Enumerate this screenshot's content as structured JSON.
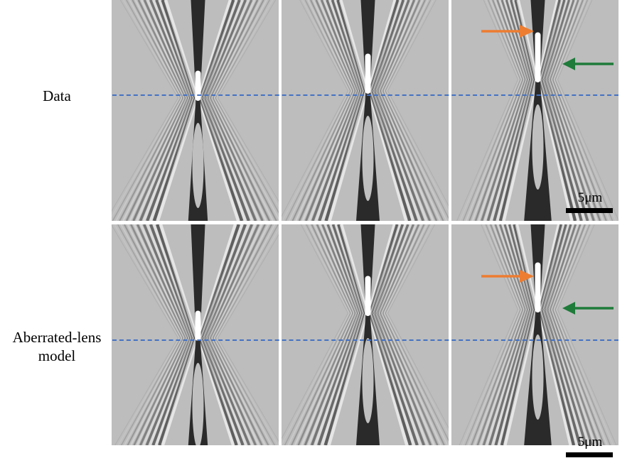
{
  "figure": {
    "rows": [
      {
        "label": "Data"
      },
      {
        "label": "Aberrated-lens model"
      }
    ],
    "columns": 3,
    "scale_bar": {
      "text": "5μm"
    },
    "colors": {
      "dashed_line": "#4472c4",
      "orange_arrow": "#ed7d31",
      "green_arrow": "#1e7b3a",
      "background_gray": "#bdbdbd"
    },
    "icons": {
      "orange_arrow": "arrow-right-icon",
      "green_arrow": "arrow-left-icon"
    }
  }
}
